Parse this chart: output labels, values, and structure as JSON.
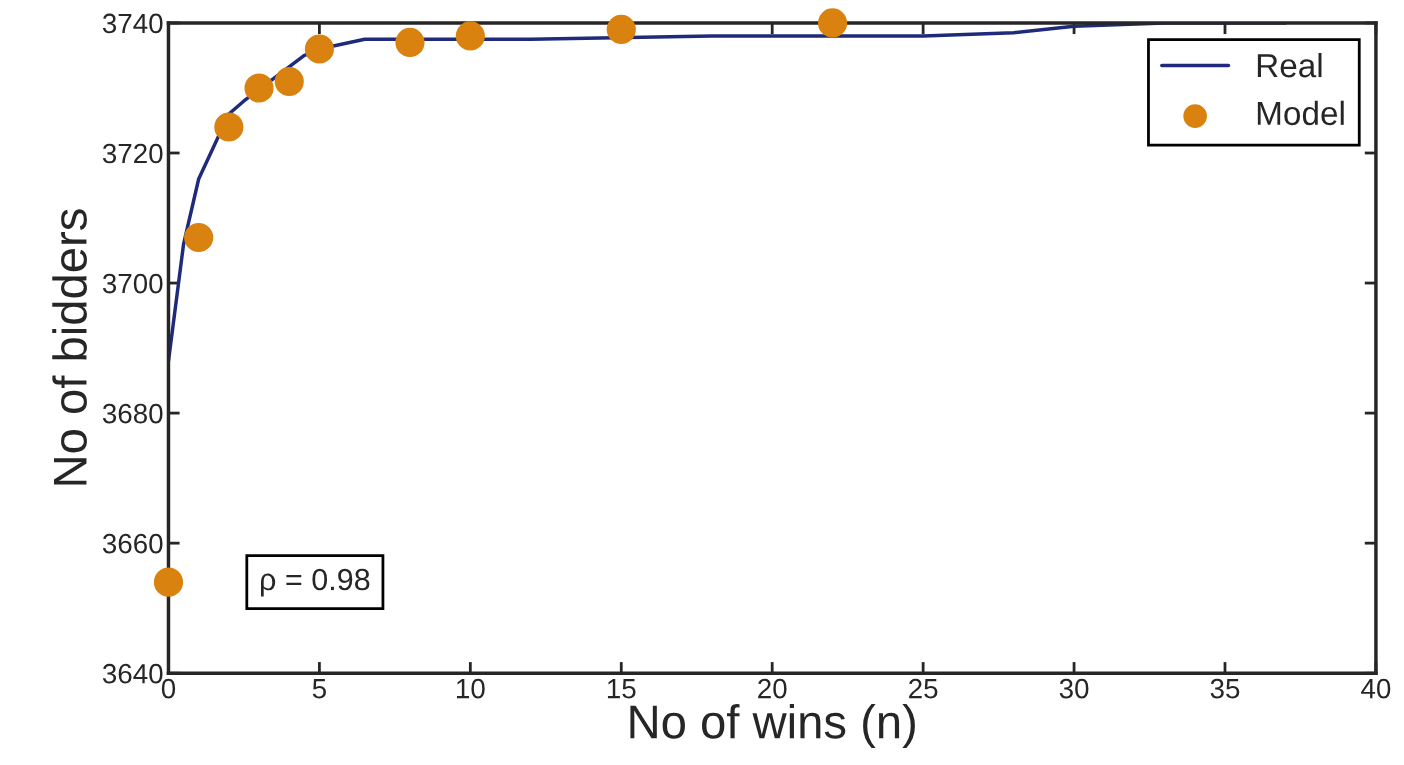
{
  "chart_data": {
    "type": "line",
    "xlabel": "No of wins (n)",
    "ylabel": "No of bidders",
    "series": [
      {
        "name": "Real",
        "color": "#1f2a7a",
        "x": [
          0,
          0.5,
          1,
          1.5,
          2,
          2.5,
          3.5,
          4.5,
          5.5,
          6.5,
          12,
          18,
          25,
          28,
          30,
          33,
          37
        ],
        "values": [
          3688,
          3706,
          3716,
          3721,
          3726,
          3728,
          3731.5,
          3735,
          3736.5,
          3737.5,
          3737.5,
          3738,
          3738,
          3738.5,
          3739.5,
          3740,
          3740
        ]
      },
      {
        "name": "Model",
        "type": "scatter",
        "color": "#d9820f",
        "marker": "circle",
        "x": [
          0,
          1,
          2,
          3,
          4,
          5,
          8,
          10,
          15,
          22
        ],
        "values": [
          3654,
          3707,
          3724,
          3730,
          3731,
          3736,
          3737,
          3738,
          3739,
          3740
        ]
      }
    ],
    "xlim": [
      0,
      40
    ],
    "xticks": [
      0,
      5,
      10,
      15,
      20,
      25,
      30,
      35,
      40
    ],
    "ylim": [
      3640,
      3740
    ],
    "yticks": [
      3640,
      3660,
      3680,
      3700,
      3720,
      3740
    ],
    "annotations": [
      "ρ = 0.98"
    ],
    "legend": "top right",
    "grid": false
  }
}
